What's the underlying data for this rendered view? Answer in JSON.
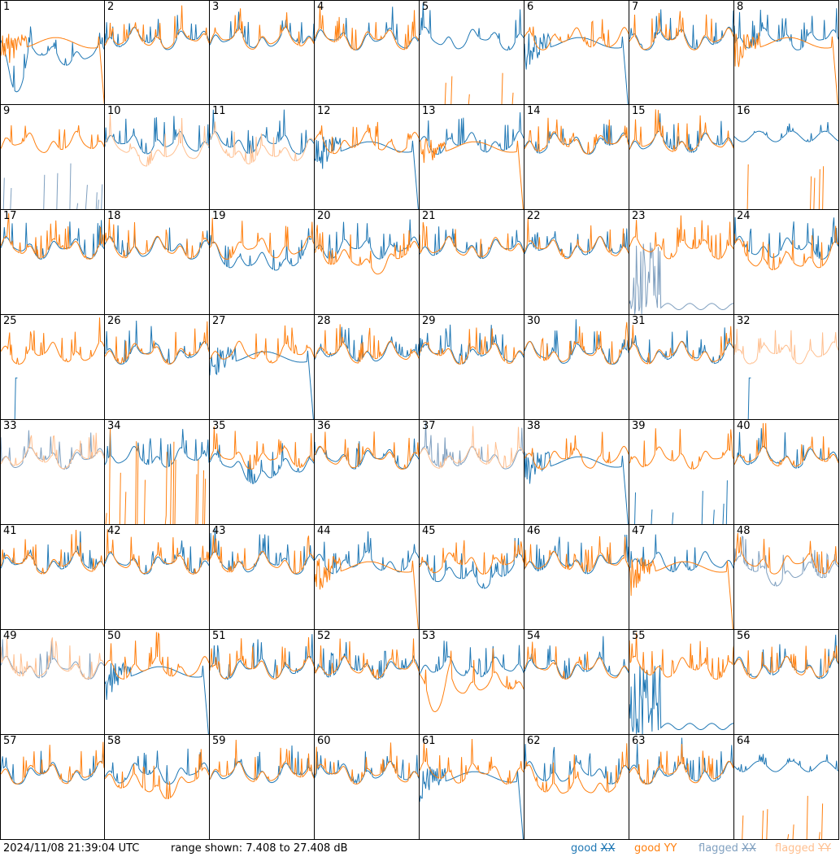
{
  "chart_data": {
    "type": "line",
    "panel_labels": [
      "1",
      "2",
      "3",
      "4",
      "5",
      "6",
      "7",
      "8",
      "9",
      "10",
      "11",
      "12",
      "13",
      "14",
      "15",
      "16",
      "17",
      "18",
      "19",
      "20",
      "21",
      "22",
      "23",
      "24",
      "25",
      "26",
      "27",
      "28",
      "29",
      "30",
      "31",
      "32",
      "33",
      "34",
      "35",
      "36",
      "37",
      "38",
      "39",
      "40",
      "41",
      "42",
      "43",
      "44",
      "45",
      "46",
      "47",
      "48",
      "49",
      "50",
      "51",
      "52",
      "53",
      "54",
      "55",
      "56",
      "57",
      "58",
      "59",
      "60",
      "61",
      "62",
      "63",
      "64"
    ],
    "grid": {
      "rows": 8,
      "cols": 8
    },
    "ylim_db": [
      7.408,
      27.408
    ],
    "series_legend": [
      {
        "label_word": "good",
        "label_pol": "XX",
        "color": "#1f77b4",
        "strike": false
      },
      {
        "label_word": "good",
        "label_pol": "YY",
        "color": "#ff7f0e",
        "strike": false
      },
      {
        "label_word": "flagged",
        "label_pol": "XX",
        "color": "#7f9fbf",
        "strike": true
      },
      {
        "label_word": "flagged",
        "label_pol": "YY",
        "color": "#ffbf8f",
        "strike": true
      }
    ],
    "panels": [
      {
        "x": "dip",
        "y": "taper"
      },
      {
        "x": "n",
        "y": "n"
      },
      {
        "x": "n",
        "y": "n"
      },
      {
        "x": "n",
        "y": "n"
      },
      {
        "x": "n",
        "y": "spikes"
      },
      {
        "x": "taper",
        "y": "n"
      },
      {
        "x": "n",
        "y": "n"
      },
      {
        "x": "n",
        "y": "taper"
      },
      {
        "x": "flag_spikes",
        "y": "n"
      },
      {
        "x": "n",
        "y": "flag_low"
      },
      {
        "x": "n",
        "y": "flag_low"
      },
      {
        "x": "taper",
        "y": "n"
      },
      {
        "x": "n",
        "y": "taper"
      },
      {
        "x": "n",
        "y": "n"
      },
      {
        "x": "n",
        "y": "n"
      },
      {
        "x": "flat",
        "y": "spikes"
      },
      {
        "x": "n",
        "y": "n"
      },
      {
        "x": "n",
        "y": "n"
      },
      {
        "x": "low",
        "y": "n"
      },
      {
        "x": "n",
        "y": "low"
      },
      {
        "x": "n",
        "y": "n"
      },
      {
        "x": "n",
        "y": "n"
      },
      {
        "x": "flag_noise",
        "y": "n"
      },
      {
        "x": "n",
        "y": "low"
      },
      {
        "x": "spike1",
        "y": "n"
      },
      {
        "x": "n",
        "y": "n"
      },
      {
        "x": "taper",
        "y": "n"
      },
      {
        "x": "n",
        "y": "n"
      },
      {
        "x": "n",
        "y": "n"
      },
      {
        "x": "n",
        "y": "n"
      },
      {
        "x": "n",
        "y": "n"
      },
      {
        "x": "spike1",
        "y": "flag_n"
      },
      {
        "x": "flag_n",
        "y": "flag_n"
      },
      {
        "x": "n",
        "y": "junk"
      },
      {
        "x": "low",
        "y": "n"
      },
      {
        "x": "n",
        "y": "n"
      },
      {
        "x": "flag_n",
        "y": "flag_n"
      },
      {
        "x": "taper",
        "y": "n"
      },
      {
        "x": "spikes",
        "y": "n"
      },
      {
        "x": "n",
        "y": "n"
      },
      {
        "x": "n",
        "y": "n"
      },
      {
        "x": "n",
        "y": "n"
      },
      {
        "x": "n",
        "y": "n"
      },
      {
        "x": "n",
        "y": "taper"
      },
      {
        "x": "low",
        "y": "n"
      },
      {
        "x": "n",
        "y": "n"
      },
      {
        "x": "n",
        "y": "taper"
      },
      {
        "x": "flag_low",
        "y": "n"
      },
      {
        "x": "flag_n",
        "y": "flag_n"
      },
      {
        "x": "taper",
        "y": "n"
      },
      {
        "x": "n",
        "y": "n"
      },
      {
        "x": "n",
        "y": "n"
      },
      {
        "x": "n",
        "y": "dip"
      },
      {
        "x": "n",
        "y": "n"
      },
      {
        "x": "noise",
        "y": "n"
      },
      {
        "x": "n",
        "y": "n"
      },
      {
        "x": "n",
        "y": "n"
      },
      {
        "x": "n",
        "y": "low"
      },
      {
        "x": "n",
        "y": "n"
      },
      {
        "x": "n",
        "y": "n"
      },
      {
        "x": "taper",
        "y": "n"
      },
      {
        "x": "n",
        "y": "low"
      },
      {
        "x": "n",
        "y": "n"
      },
      {
        "x": "flat",
        "y": "spikes"
      }
    ]
  },
  "footer": {
    "timestamp": "2024/11/08 21:39:04 UTC",
    "range_text": "range shown: 7.408 to 27.408 dB"
  }
}
